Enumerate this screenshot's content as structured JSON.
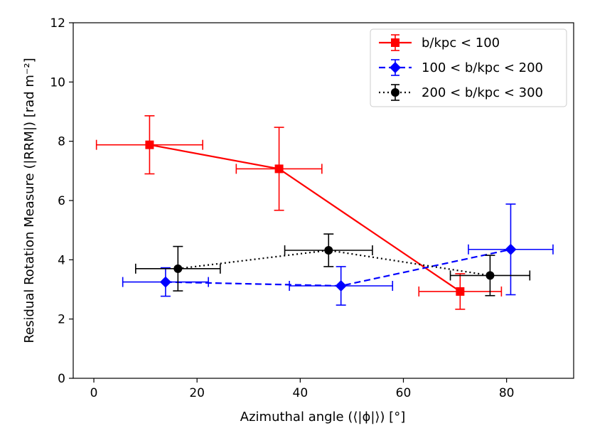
{
  "chart_data": {
    "type": "line",
    "title": "",
    "xlabel": "Azimuthal angle (⟨|ϕ|⟩) [°]",
    "ylabel": "Residual Rotation Measure (|RRM|) [rad m⁻²]",
    "xlim": [
      -4,
      93
    ],
    "ylim": [
      0,
      12
    ],
    "xticks": [
      0,
      20,
      40,
      60,
      80
    ],
    "yticks": [
      0,
      2,
      4,
      6,
      8,
      10,
      12
    ],
    "grid": false,
    "legend_position": "top-right",
    "series": [
      {
        "name": "b/kpc < 100",
        "legend_label": "b/kpc < 100",
        "color": "#ff0000",
        "marker": "square",
        "linestyle": "solid",
        "points": [
          {
            "x": 10.8,
            "y": 7.88,
            "xerr": 10.3,
            "yerr": 0.98
          },
          {
            "x": 35.9,
            "y": 7.07,
            "xerr": 8.3,
            "yerr": 1.4
          },
          {
            "x": 71.0,
            "y": 2.93,
            "xerr": 8.0,
            "yerr": 0.6
          }
        ]
      },
      {
        "name": "100 < b/kpc < 200",
        "legend_label": "100 < b/kpc < 200",
        "color": "#0000ff",
        "marker": "diamond",
        "linestyle": "dashed",
        "points": [
          {
            "x": 13.9,
            "y": 3.25,
            "xerr": 8.3,
            "yerr": 0.48
          },
          {
            "x": 47.9,
            "y": 3.12,
            "xerr": 10.0,
            "yerr": 0.65
          },
          {
            "x": 80.8,
            "y": 4.35,
            "xerr": 8.2,
            "yerr": 1.53
          }
        ]
      },
      {
        "name": "200 < b/kpc < 300",
        "legend_label": "200 < b/kpc < 300",
        "color": "#000000",
        "marker": "circle",
        "linestyle": "dotted",
        "points": [
          {
            "x": 16.3,
            "y": 3.7,
            "xerr": 8.2,
            "yerr": 0.75
          },
          {
            "x": 45.5,
            "y": 4.32,
            "xerr": 8.5,
            "yerr": 0.55
          },
          {
            "x": 76.8,
            "y": 3.47,
            "xerr": 7.7,
            "yerr": 0.68
          }
        ]
      }
    ]
  }
}
